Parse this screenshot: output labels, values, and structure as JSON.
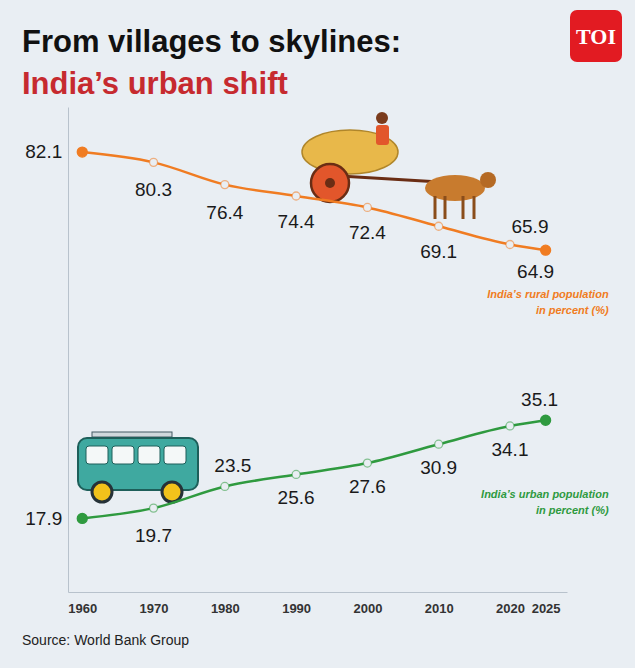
{
  "chart_data": {
    "type": "line",
    "title": "From villages to skylines:",
    "subtitle": "India’s urban shift",
    "logo": "TOI",
    "source": "Source: World Bank Group",
    "x": [
      1960,
      1970,
      1980,
      1990,
      2000,
      2010,
      2020,
      2025
    ],
    "xlim": [
      1958,
      2028
    ],
    "xticks": [
      1960,
      1970,
      1980,
      1990,
      2000,
      2010,
      2020,
      2025
    ],
    "ylim": [
      5,
      90
    ],
    "yticks": [],
    "tick_labels": "x",
    "data_labels": true,
    "marker": "circle",
    "series": [
      {
        "name": "India’s rural population in percent (%)",
        "color": "#f07c22",
        "values": [
          82.1,
          80.3,
          76.4,
          74.4,
          72.4,
          69.1,
          65.9,
          64.9
        ]
      },
      {
        "name": "India’s urban population in percent (%)",
        "color": "#2f9a3f",
        "values": [
          17.9,
          19.7,
          23.5,
          25.6,
          27.6,
          30.9,
          34.1,
          35.1
        ]
      }
    ]
  }
}
